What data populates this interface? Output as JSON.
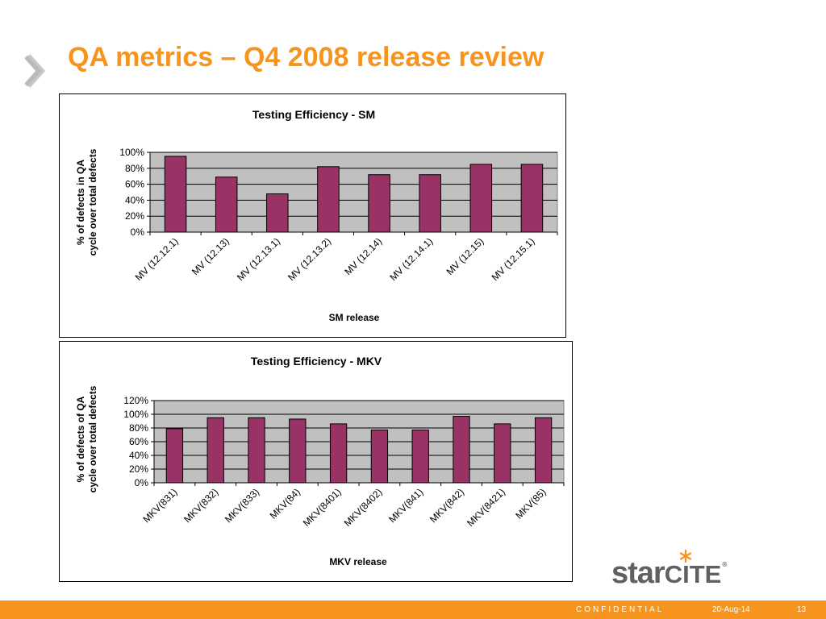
{
  "slide": {
    "title": "QA metrics – Q4 2008 release review",
    "accent_color": "#f7941d",
    "arrow_icon": "double-chevron-right-icon"
  },
  "chart_data": [
    {
      "type": "bar",
      "title": "Testing Efficiency - SM",
      "ylabel": "% of defects in QA cycle over total defects",
      "xlabel": "SM release",
      "categories": [
        "MV (12.12.1)",
        "MV (12.13)",
        "MV (12.13.1)",
        "MV (12.13.2)",
        "MV (12.14)",
        "MV (12.14.1)",
        "MV (12.15)",
        "MV (12.15.1)"
      ],
      "values": [
        95,
        69,
        48,
        82,
        72,
        72,
        85,
        85
      ],
      "ylim": [
        0,
        100
      ],
      "yticks": [
        "0%",
        "20%",
        "40%",
        "60%",
        "80%",
        "100%"
      ],
      "grid": true,
      "bar_color": "#993366",
      "plot_background": "#c0c0c0"
    },
    {
      "type": "bar",
      "title": "Testing Efficiency - MKV",
      "ylabel": "% of defects of QA cycle over total defects",
      "xlabel": "MKV release",
      "categories": [
        "MKV(831)",
        "MKV(832)",
        "MKV(833)",
        "MKV(84)",
        "MKV(8401)",
        "MKV(8402)",
        "MKV(841)",
        "MKV(842)",
        "MKV(8421)",
        "MKV(85)"
      ],
      "values": [
        79,
        95,
        95,
        93,
        86,
        77,
        77,
        97,
        86,
        95
      ],
      "ylim": [
        0,
        120
      ],
      "yticks": [
        "0%",
        "20%",
        "40%",
        "60%",
        "80%",
        "100%",
        "120%"
      ],
      "grid": true,
      "bar_color": "#993366",
      "plot_background": "#c0c0c0"
    }
  ],
  "logo": {
    "part1": "star",
    "part2": "CITE",
    "registered": "®",
    "star_icon": "asterisk-star-icon"
  },
  "footer": {
    "confidential": "CONFIDENTIAL",
    "date": "20-Aug-14",
    "page": "13"
  }
}
